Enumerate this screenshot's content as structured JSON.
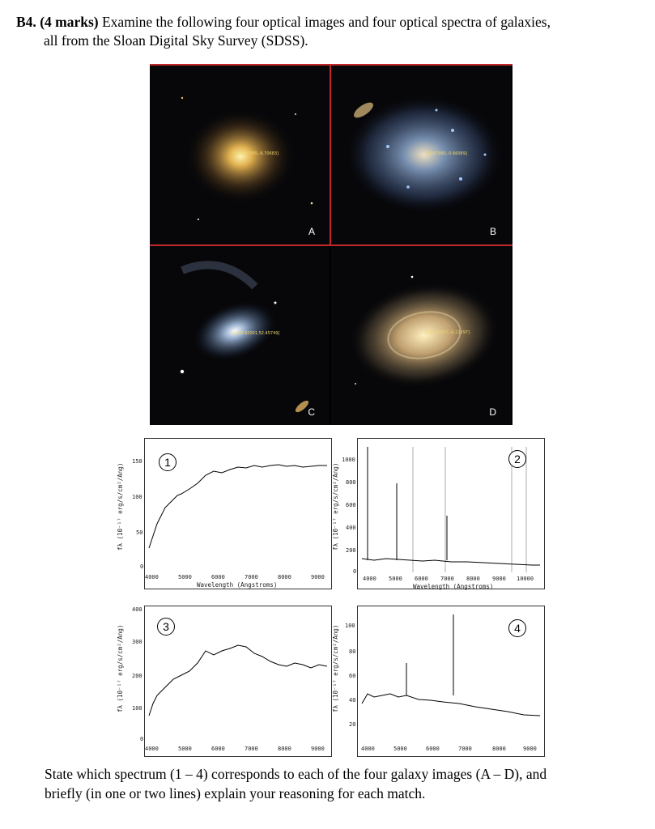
{
  "question": {
    "number": "B4.",
    "marks": "(4 marks)",
    "line1": " Examine the following four optical images and four optical spectra of galaxies,",
    "line2": "all from the Sloan Digital Sky Survey (SDSS).",
    "instruction_line1": "State which spectrum (1 – 4) corresponds to each of the four galaxy images (A – D), and",
    "instruction_line2": "briefly (in one or two lines) explain your reasoning for each match."
  },
  "images": [
    {
      "letter": "A",
      "coord": "[125.47395,-8.70683]"
    },
    {
      "letter": "B",
      "coord": "[18.87985,-0.66069]"
    },
    {
      "letter": "C",
      "coord": "[242.92001,52.45749]"
    },
    {
      "letter": "D",
      "coord": "[221.54637,-0.22297]"
    }
  ],
  "spectra": [
    {
      "badge": "1",
      "ylabel": "fλ (10⁻¹⁷ erg/s/cm²/Ang)",
      "xlabel": "Wavelength (Angstroms)",
      "yticks": [
        "150",
        "100",
        "50",
        "0"
      ],
      "xticks": [
        "4000",
        "5000",
        "6000",
        "7000",
        "8000",
        "9000"
      ]
    },
    {
      "badge": "2",
      "ylabel": "fλ (10⁻¹⁷ erg/s/cm²/Ang)",
      "xlabel": "Wavelength (Angstroms)",
      "yticks": [
        "1000",
        "800",
        "600",
        "400",
        "200",
        "0"
      ],
      "xticks": [
        "4000",
        "5000",
        "6000",
        "7000",
        "8000",
        "9000",
        "10000"
      ]
    },
    {
      "badge": "3",
      "ylabel": "fλ (10⁻¹⁷ erg/s/cm²/Ang)",
      "xlabel": "Wavelength (Angstroms)",
      "yticks": [
        "400",
        "300",
        "200",
        "100",
        "0"
      ],
      "xticks": [
        "4000",
        "5000",
        "6000",
        "7000",
        "8000",
        "9000"
      ]
    },
    {
      "badge": "4",
      "ylabel": "fλ (10⁻¹⁷ erg/s/cm²/Ang)",
      "xlabel": "Wavelength (Angstroms)",
      "yticks": [
        "100",
        "80",
        "60",
        "40",
        "20"
      ],
      "xticks": [
        "4000",
        "5000",
        "6000",
        "7000",
        "8000",
        "9000"
      ]
    }
  ]
}
